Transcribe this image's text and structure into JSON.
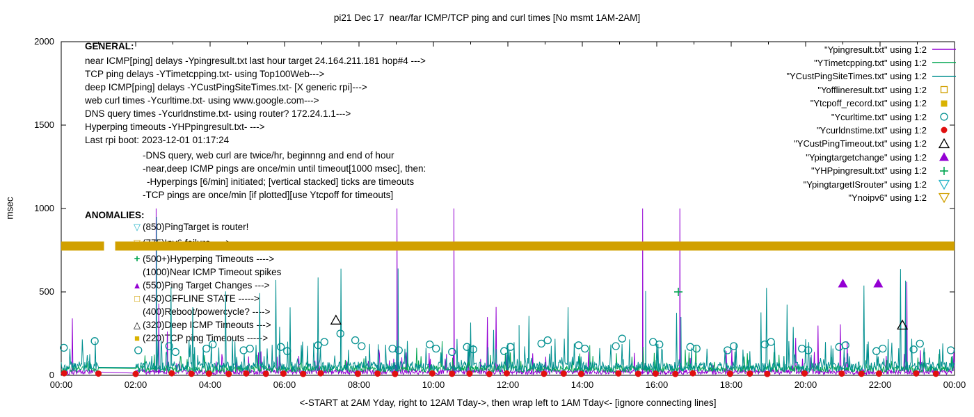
{
  "annotations": {
    "general": {
      "heading": "GENERAL:",
      "lines": [
        {
          "indent": 0,
          "text": "near ICMP[ping] delays -Ypingresult.txt last hour target 24.164.211.181 hop#4 --->"
        },
        {
          "indent": 0,
          "text": "TCP ping delays -YTimetcpping.txt- using Top100Web--->"
        },
        {
          "indent": 0,
          "text": "deep ICMP[ping] delays -YCustPingSiteTimes.txt- [X generic rpi]--->"
        },
        {
          "indent": 0,
          "text": "web curl times -Ycurltime.txt- using www.google.com--->"
        },
        {
          "indent": 0,
          "text": "DNS query times -Ycurldnstime.txt- using router? 172.24.1.1--->"
        },
        {
          "indent": 0,
          "text": "Hyperping timeouts -YHPpingresult.txt- --->"
        },
        {
          "indent": 0,
          "text": "Last rpi boot: 2023-12-01 01:17:24"
        },
        {
          "indent": 1,
          "text": "-DNS query, web curl are twice/hr, beginnng and end of hour"
        },
        {
          "indent": 1,
          "text": "-near,deep ICMP pings are once/min until timeout[1000 msec], then:"
        },
        {
          "indent": 2,
          "text": "-Hyperpings [6/min] initiated; [vertical stacked] ticks are timeouts"
        },
        {
          "indent": 1,
          "text": "-TCP pings are once/min [if plotted][use Ytcpoff for timeouts]"
        }
      ]
    },
    "anomalies": {
      "heading": "ANOMALIES:",
      "lines": [
        {
          "marker": "open-triangle-down",
          "marker_color": "cyan",
          "text": "(850)PingTarget is router!"
        },
        {
          "marker": "open-triangle-down",
          "marker_color": "gold",
          "text": "(775)Ipv6 failure ---->"
        },
        {
          "marker": "plus",
          "marker_color": "green",
          "text": "(500+)Hyperping Timeouts ---->"
        },
        {
          "marker": "",
          "marker_color": "",
          "text": "(1000)Near ICMP Timeout spikes"
        },
        {
          "marker": "filled-triangle-up",
          "marker_color": "purple",
          "text": "(550)Ping Target Changes --->"
        },
        {
          "marker": "open-square",
          "marker_color": "gold",
          "text": "(450)OFFLINE STATE ----->"
        },
        {
          "marker": "",
          "marker_color": "",
          "text": "(400)Reboot/powercycle? ---->"
        },
        {
          "marker": "open-triangle-up",
          "marker_color": "black",
          "text": "(320)Deep ICMP Timeouts --->"
        },
        {
          "marker": "filled-square",
          "marker_color": "yellow",
          "text": "(220)TCP ping Timeouts ----->"
        }
      ]
    }
  },
  "chart_data": {
    "type": "line",
    "title": "pi21 Dec 17  near/far ICMP/TCP ping and curl times [No msmt 1AM-2AM]",
    "xlabel": "<-START at 2AM Yday, right to 12AM Tday->, then wrap left to 1AM Tday<- [ignore connecting lines]",
    "ylabel": "msec",
    "ylim": [
      0,
      2000
    ],
    "x_hours": [
      0,
      24
    ],
    "gap_hours": [
      1.0,
      2.0
    ],
    "y_ticks": [
      0,
      500,
      1000,
      1500,
      2000
    ],
    "x_ticks": [
      "00:00",
      "02:00",
      "04:00",
      "06:00",
      "08:00",
      "10:00",
      "12:00",
      "14:00",
      "16:00",
      "18:00",
      "20:00",
      "22:00",
      "00:00"
    ],
    "grid": false,
    "legend_position": "top-right",
    "colors": {
      "purple": "#9400d3",
      "green": "#00a550",
      "teal": "#008f8f",
      "cyan": "#2ab5c9",
      "red": "#e01010",
      "gold": "#d1a000",
      "yellow": "#d9b200",
      "black": "#000000"
    },
    "legend": [
      {
        "label": "\"Ypingresult.txt\" using 1:2",
        "style": "line",
        "color": "purple"
      },
      {
        "label": "\"YTimetcpping.txt\" using 1:2",
        "style": "line",
        "color": "green"
      },
      {
        "label": "\"YCustPingSiteTimes.txt\" using 1:2",
        "style": "line",
        "color": "teal"
      },
      {
        "label": "\"Yofflineresult.txt\" using 1:2",
        "style": "open-square",
        "color": "gold"
      },
      {
        "label": "\"Ytcpoff_record.txt\" using 1:2",
        "style": "filled-square",
        "color": "yellow"
      },
      {
        "label": "\"Ycurltime.txt\" using 1:2",
        "style": "open-circle",
        "color": "teal"
      },
      {
        "label": "\"Ycurldnstime.txt\" using 1:2",
        "style": "filled-circle",
        "color": "red"
      },
      {
        "label": "\"YCustPingTimeout.txt\" using 1:2",
        "style": "open-triangle-up",
        "color": "black"
      },
      {
        "label": "\"Ypingtargetchange\" using 1:2",
        "style": "filled-triangle-up",
        "color": "purple"
      },
      {
        "label": "\"YHPpingresult.txt\" using 1:2",
        "style": "plus",
        "color": "green"
      },
      {
        "label": "\"YpingtargetISrouter\" using 1:2",
        "style": "open-triangle-down",
        "color": "cyan"
      },
      {
        "label": "\"Ynoipv6\" using 1:2",
        "style": "open-triangle-down",
        "color": "gold"
      }
    ],
    "series": [
      {
        "name": "Ypingresult",
        "style": "line",
        "color": "purple",
        "noise": {
          "seed": 101,
          "base": 5,
          "jitter": 30,
          "bump_p": 0.06,
          "bump": [
            40,
            160
          ],
          "big_p": 0.006,
          "big": [
            200,
            420
          ]
        },
        "spikes": [
          [
            2.55,
            1000
          ],
          [
            2.62,
            430
          ],
          [
            9.02,
            1000
          ],
          [
            10.55,
            1000
          ],
          [
            15.62,
            1000
          ],
          [
            16.62,
            1000
          ],
          [
            22.72,
            560
          ]
        ]
      },
      {
        "name": "YTimetcpping",
        "style": "line",
        "color": "green",
        "noise": {
          "seed": 202,
          "base": 18,
          "jitter": 40,
          "bump_p": 0.05,
          "bump": [
            60,
            140
          ],
          "big_p": 0.003,
          "big": [
            150,
            260
          ]
        },
        "spikes": [
          [
            9.3,
            200
          ],
          [
            14.2,
            180
          ]
        ]
      },
      {
        "name": "YCustPingSiteTimes",
        "style": "line",
        "color": "teal",
        "noise": {
          "seed": 303,
          "base": 22,
          "jitter": 60,
          "bump_p": 0.1,
          "bump": [
            90,
            220
          ],
          "big_p": 0.01,
          "big": [
            250,
            650
          ]
        },
        "spikes": [
          [
            2.56,
            950
          ],
          [
            9.05,
            640
          ],
          [
            12.3,
            300
          ],
          [
            15.7,
            505
          ],
          [
            16.65,
            350
          ],
          [
            22.7,
            300
          ]
        ]
      },
      {
        "name": "Yofflineresult",
        "style": "open-square",
        "color": "gold",
        "points": []
      },
      {
        "name": "Ytcpoff_record",
        "style": "filled-square",
        "color": "yellow",
        "points": []
      },
      {
        "name": "Ycurltime",
        "style": "open-circle",
        "color": "teal",
        "points": [
          [
            0.07,
            165
          ],
          [
            0.9,
            205
          ],
          [
            2.07,
            150
          ],
          [
            2.9,
            175
          ],
          [
            3.07,
            140
          ],
          [
            3.9,
            160
          ],
          [
            4.07,
            185
          ],
          [
            4.9,
            150
          ],
          [
            5.07,
            160
          ],
          [
            5.9,
            170
          ],
          [
            6.07,
            145
          ],
          [
            6.9,
            180
          ],
          [
            7.07,
            200
          ],
          [
            7.5,
            250
          ],
          [
            7.9,
            210
          ],
          [
            8.07,
            175
          ],
          [
            8.9,
            160
          ],
          [
            9.07,
            150
          ],
          [
            9.9,
            185
          ],
          [
            10.07,
            160
          ],
          [
            10.5,
            140
          ],
          [
            10.9,
            170
          ],
          [
            11.07,
            155
          ],
          [
            11.9,
            145
          ],
          [
            12.07,
            170
          ],
          [
            12.9,
            190
          ],
          [
            13.07,
            210
          ],
          [
            13.9,
            180
          ],
          [
            14.07,
            160
          ],
          [
            14.9,
            175
          ],
          [
            15.07,
            220
          ],
          [
            15.9,
            200
          ],
          [
            16.07,
            185
          ],
          [
            16.9,
            170
          ],
          [
            17.07,
            160
          ],
          [
            17.9,
            150
          ],
          [
            18.07,
            175
          ],
          [
            18.9,
            185
          ],
          [
            19.07,
            200
          ],
          [
            19.9,
            160
          ],
          [
            20.07,
            150
          ],
          [
            20.9,
            170
          ],
          [
            21.07,
            180
          ],
          [
            21.9,
            145
          ],
          [
            22.07,
            160
          ],
          [
            22.9,
            155
          ],
          [
            23.07,
            190
          ],
          [
            23.9,
            150
          ]
        ]
      },
      {
        "name": "Ycurldnstime",
        "style": "filled-circle",
        "color": "red",
        "points": [
          [
            0.08,
            12
          ],
          [
            1.0,
            10
          ],
          [
            2.0,
            8
          ],
          [
            2.97,
            12
          ],
          [
            3.5,
            9
          ],
          [
            3.97,
            10
          ],
          [
            4.5,
            8
          ],
          [
            4.97,
            11
          ],
          [
            5.5,
            9
          ],
          [
            5.97,
            10
          ],
          [
            6.5,
            8
          ],
          [
            6.97,
            12
          ],
          [
            7.97,
            9
          ],
          [
            8.5,
            10
          ],
          [
            8.97,
            8
          ],
          [
            9.97,
            11
          ],
          [
            10.5,
            9
          ],
          [
            10.97,
            10
          ],
          [
            11.5,
            8
          ],
          [
            11.97,
            12
          ],
          [
            12.97,
            9
          ],
          [
            13.5,
            10
          ],
          [
            13.97,
            8
          ],
          [
            14.97,
            11
          ],
          [
            15.5,
            9
          ],
          [
            15.97,
            10
          ],
          [
            16.5,
            8
          ],
          [
            16.97,
            12
          ],
          [
            17.97,
            9
          ],
          [
            18.5,
            10
          ],
          [
            18.97,
            8
          ],
          [
            19.97,
            11
          ],
          [
            20.97,
            10
          ],
          [
            21.5,
            9
          ],
          [
            21.97,
            10
          ],
          [
            22.97,
            11
          ],
          [
            23.5,
            9
          ]
        ]
      },
      {
        "name": "YCustPingTimeout",
        "style": "open-triangle-up",
        "color": "black",
        "points": [
          [
            7.38,
            330
          ],
          [
            22.6,
            300
          ]
        ]
      },
      {
        "name": "Ypingtargetchange",
        "style": "filled-triangle-up",
        "color": "purple",
        "points": [
          [
            21.0,
            550
          ],
          [
            21.95,
            550
          ]
        ]
      },
      {
        "name": "YHPpingresult",
        "style": "plus",
        "color": "green",
        "points": [
          [
            16.58,
            500
          ]
        ]
      },
      {
        "name": "YpingtargetISrouter",
        "style": "open-triangle-down",
        "color": "cyan",
        "points": []
      },
      {
        "name": "Ynoipv6",
        "style": "band",
        "color": "gold",
        "band": {
          "value": 775,
          "thickness_px": 13,
          "gap_hours": [
            1.15,
            1.45
          ]
        }
      }
    ]
  }
}
